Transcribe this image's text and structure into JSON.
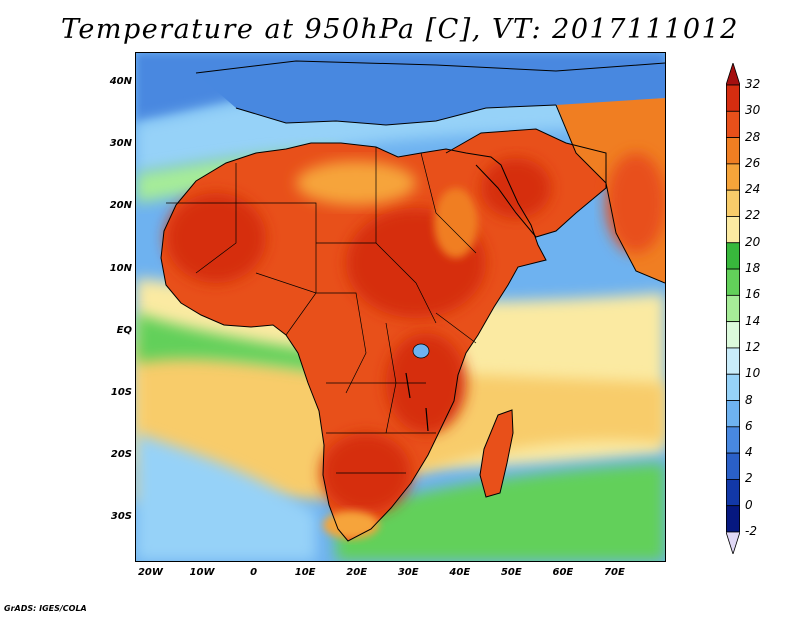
{
  "title": "Temperature at 950hPa [C], VT: 2017111012",
  "credit": "GrADS: IGES/COLA",
  "map": {
    "lon_range": [
      -23,
      80
    ],
    "lat_range": [
      -37,
      45
    ],
    "lat_ticks": [
      {
        "value": 40,
        "label": "40N"
      },
      {
        "value": 30,
        "label": "30N"
      },
      {
        "value": 20,
        "label": "20N"
      },
      {
        "value": 10,
        "label": "10N"
      },
      {
        "value": 0,
        "label": "EQ"
      },
      {
        "value": -10,
        "label": "10S"
      },
      {
        "value": -20,
        "label": "20S"
      },
      {
        "value": -30,
        "label": "30S"
      }
    ],
    "lon_ticks": [
      {
        "value": -20,
        "label": "20W"
      },
      {
        "value": -10,
        "label": "10W"
      },
      {
        "value": 0,
        "label": "0"
      },
      {
        "value": 10,
        "label": "10E"
      },
      {
        "value": 20,
        "label": "20E"
      },
      {
        "value": 30,
        "label": "30E"
      },
      {
        "value": 40,
        "label": "40E"
      },
      {
        "value": 50,
        "label": "50E"
      },
      {
        "value": 60,
        "label": "60E"
      },
      {
        "value": 70,
        "label": "70E"
      }
    ]
  },
  "colorbar": {
    "labels": [
      "32",
      "30",
      "28",
      "26",
      "24",
      "22",
      "20",
      "18",
      "16",
      "14",
      "12",
      "10",
      "8",
      "6",
      "4",
      "2",
      "0",
      "-2"
    ],
    "colors": [
      "#a50f0f",
      "#d62d10",
      "#e8501a",
      "#f07e22",
      "#f6a43a",
      "#f8cc6a",
      "#fbeaa2",
      "#38b83c",
      "#62d05a",
      "#a6ec98",
      "#dcfadc",
      "#c9ecfa",
      "#96d2f8",
      "#6eb2f0",
      "#4888e0",
      "#2a60c8",
      "#1238a8",
      "#061880",
      "#e0d8f6"
    ]
  }
}
